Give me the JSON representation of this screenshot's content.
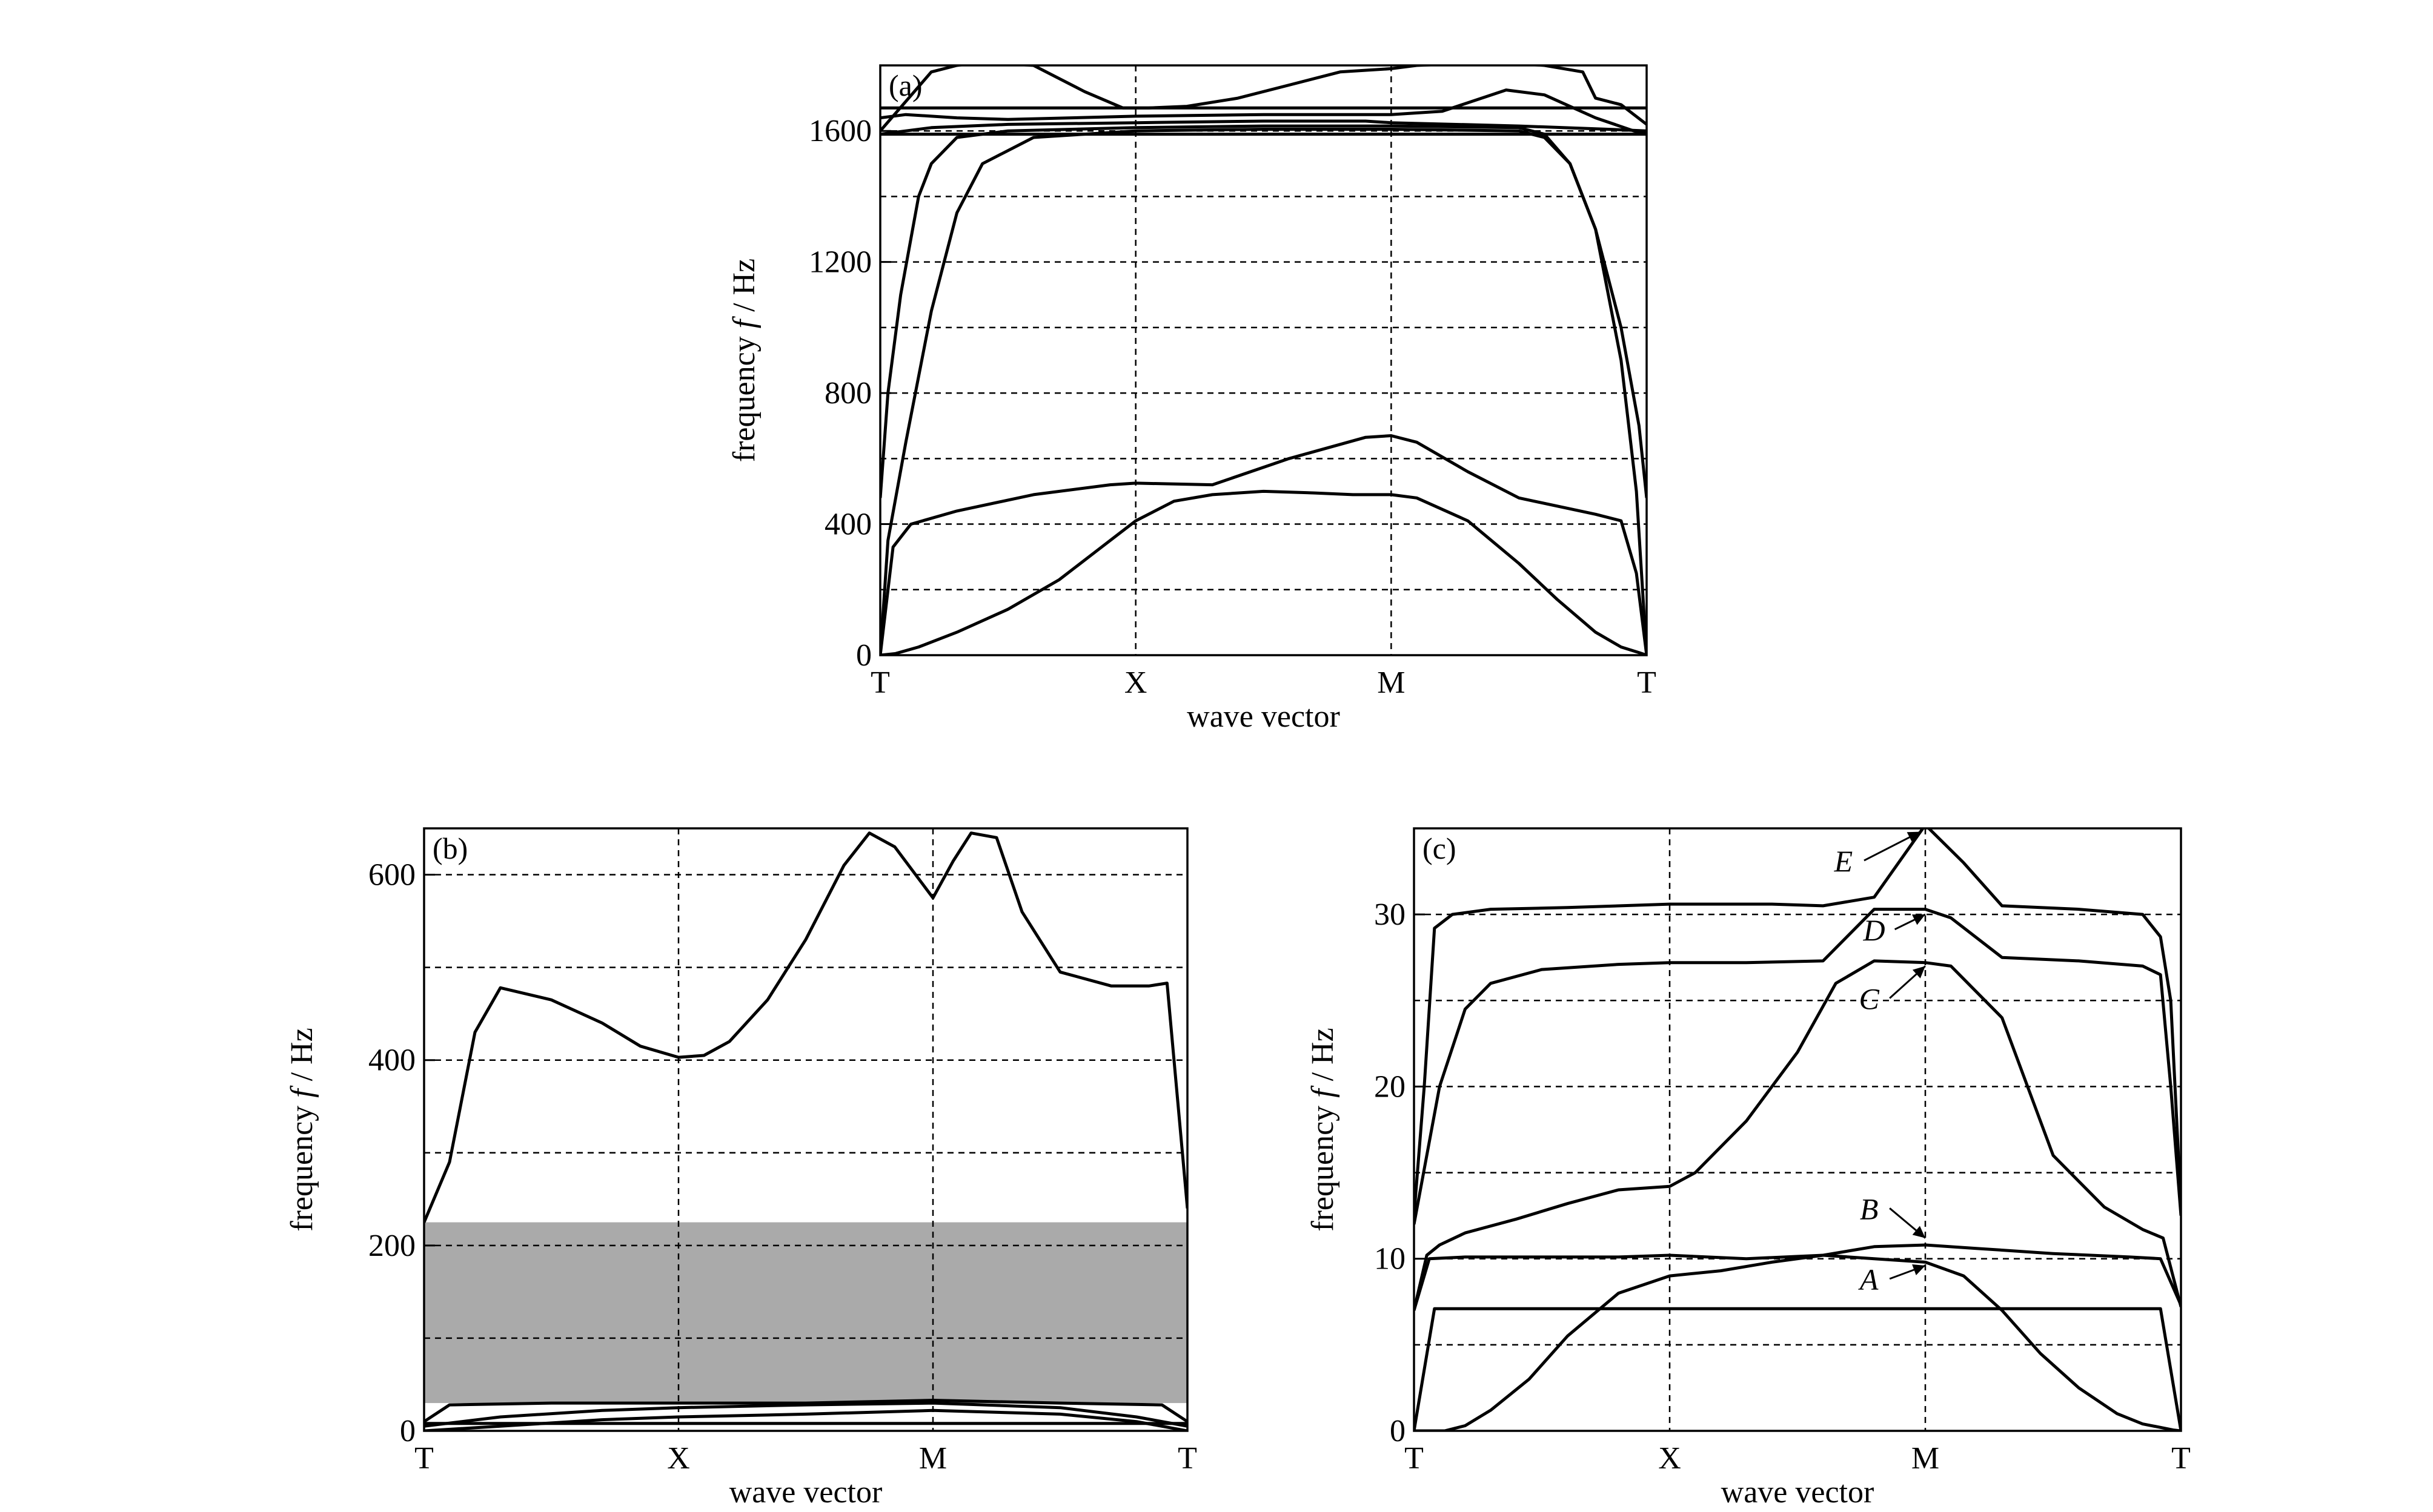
{
  "figure": {
    "background": "#ffffff",
    "line_color": "#000000",
    "band_color": "#aaaaaa"
  },
  "chart_data": [
    {
      "id": "a",
      "type": "line",
      "panel_label": "(a)",
      "xlabel": "wave vector",
      "ylabel_main": "frequency",
      "ylabel_italic": "f",
      "ylabel_unit": "/ Hz",
      "x_tick_labels": [
        "T",
        "X",
        "M",
        "T"
      ],
      "ylim": [
        0,
        1800
      ],
      "y_ticks": [
        0,
        400,
        800,
        1200,
        1600
      ],
      "y_tick_labels": [
        "0",
        "400",
        "800",
        "1200",
        "1600"
      ],
      "y_grid": [
        200,
        400,
        600,
        800,
        1000,
        1200,
        1400,
        1600
      ],
      "x_grid": [
        1,
        2
      ],
      "grid": true,
      "grid_style": "dashed",
      "series": [
        {
          "x": [
            0,
            0.06,
            0.15,
            0.3,
            0.5,
            0.7,
            0.85,
            1.0,
            1.15,
            1.3,
            1.5,
            1.7,
            1.85,
            2.0,
            2.1,
            2.3,
            2.5,
            2.65,
            2.8,
            2.9,
            2.97,
            3.0
          ],
          "y": [
            0,
            5,
            25,
            70,
            140,
            230,
            320,
            410,
            470,
            490,
            500,
            495,
            490,
            490,
            480,
            410,
            280,
            170,
            70,
            25,
            8,
            0
          ]
        },
        {
          "x": [
            0,
            0.05,
            0.12,
            0.3,
            0.6,
            0.9,
            1.0,
            1.3,
            1.6,
            1.9,
            2.0,
            2.1,
            2.3,
            2.5,
            2.8,
            2.9,
            2.96,
            3.0
          ],
          "y": [
            0,
            330,
            400,
            440,
            490,
            520,
            525,
            520,
            600,
            665,
            670,
            650,
            560,
            480,
            430,
            410,
            250,
            0
          ]
        },
        {
          "x": [
            0,
            0.03,
            0.1,
            0.2,
            0.3,
            0.4,
            0.6,
            1.0,
            1.5,
            2.0,
            2.5,
            2.6,
            2.7,
            2.8,
            2.9,
            2.96,
            3.0
          ],
          "y": [
            0,
            350,
            650,
            1050,
            1350,
            1500,
            1580,
            1600,
            1605,
            1605,
            1600,
            1580,
            1500,
            1300,
            900,
            500,
            0
          ]
        },
        {
          "x": [
            0,
            0.03,
            0.08,
            0.15,
            0.2,
            0.3,
            0.5,
            1.0,
            1.5,
            2.0,
            2.5,
            2.6,
            2.7,
            2.8,
            2.9,
            2.97,
            3.0
          ],
          "y": [
            480,
            800,
            1100,
            1400,
            1500,
            1580,
            1600,
            1610,
            1615,
            1615,
            1610,
            1590,
            1500,
            1300,
            1000,
            700,
            480
          ]
        },
        {
          "x": [
            0,
            3.0
          ],
          "y": [
            1590,
            1590
          ]
        },
        {
          "x": [
            0,
            0.2,
            0.5,
            1.0,
            1.5,
            1.9,
            2.0,
            2.5,
            2.85,
            3.0
          ],
          "y": [
            1590,
            1610,
            1620,
            1625,
            1630,
            1630,
            1625,
            1615,
            1605,
            1600
          ]
        },
        {
          "x": [
            0,
            3.0
          ],
          "y": [
            1670,
            1670
          ]
        },
        {
          "x": [
            0,
            0.1,
            0.3,
            0.5,
            1.0,
            1.5,
            2.0,
            2.2,
            2.45,
            2.6,
            2.8,
            2.95,
            3.0
          ],
          "y": [
            1640,
            1650,
            1640,
            1635,
            1645,
            1650,
            1650,
            1660,
            1725,
            1710,
            1640,
            1600,
            1590
          ]
        },
        {
          "x": [
            0,
            0.1,
            0.2,
            0.3,
            0.4,
            0.6,
            0.8,
            0.95,
            1.05,
            1.2,
            1.4,
            1.6,
            1.8,
            2.0,
            2.1,
            2.4,
            2.6,
            2.75,
            2.8,
            2.9,
            2.95,
            3.0
          ],
          "y": [
            1600,
            1690,
            1780,
            1800,
            1810,
            1800,
            1720,
            1670,
            1670,
            1675,
            1700,
            1740,
            1780,
            1790,
            1800,
            1810,
            1800,
            1780,
            1700,
            1680,
            1650,
            1620
          ]
        }
      ]
    },
    {
      "id": "b",
      "type": "line",
      "panel_label": "(b)",
      "xlabel": "wave vector",
      "ylabel_main": "frequency",
      "ylabel_italic": "f",
      "ylabel_unit": "/ Hz",
      "x_tick_labels": [
        "T",
        "X",
        "M",
        "T"
      ],
      "ylim": [
        0,
        650
      ],
      "y_ticks": [
        0,
        200,
        400,
        600
      ],
      "y_tick_labels": [
        "0",
        "200",
        "400",
        "600"
      ],
      "y_grid": [
        100,
        200,
        300,
        400,
        500,
        600
      ],
      "x_grid": [
        1,
        2
      ],
      "grid": true,
      "grid_style": "dashed",
      "band_gap": [
        30,
        225
      ],
      "series": [
        {
          "x": [
            0,
            0.1,
            0.2,
            0.3,
            0.5,
            0.7,
            0.85,
            1.0,
            1.1,
            1.2,
            1.35,
            1.5,
            1.65,
            1.75,
            1.85,
            2.0,
            2.08,
            2.15,
            2.25,
            2.35,
            2.5,
            2.7,
            2.85,
            2.92,
            3.0
          ],
          "y": [
            225,
            290,
            430,
            478,
            465,
            440,
            415,
            403,
            405,
            420,
            465,
            530,
            610,
            645,
            630,
            575,
            615,
            645,
            640,
            560,
            495,
            480,
            480,
            483,
            240
          ]
        },
        {
          "x": [
            0,
            0.1,
            0.5,
            1.0,
            1.5,
            2.0,
            2.5,
            2.9,
            3.0
          ],
          "y": [
            10,
            28,
            30,
            30,
            30,
            33,
            30,
            28,
            10
          ]
        },
        {
          "x": [
            0,
            0.3,
            0.7,
            1.0,
            1.5,
            2.0,
            2.5,
            2.8,
            3.0
          ],
          "y": [
            5,
            15,
            22,
            25,
            28,
            30,
            25,
            15,
            5
          ]
        },
        {
          "x": [
            0,
            0.3,
            0.7,
            1.0,
            1.5,
            2.0,
            2.5,
            2.8,
            3.0
          ],
          "y": [
            0,
            5,
            12,
            15,
            18,
            22,
            18,
            10,
            0
          ]
        },
        {
          "x": [
            0,
            3.0
          ],
          "y": [
            8,
            8
          ]
        }
      ]
    },
    {
      "id": "c",
      "type": "line",
      "panel_label": "(c)",
      "xlabel": "wave vector",
      "ylabel_main": "frequency",
      "ylabel_italic": "f",
      "ylabel_unit": "/ Hz",
      "x_tick_labels": [
        "T",
        "X",
        "M",
        "T"
      ],
      "ylim": [
        0,
        35
      ],
      "y_ticks": [
        0,
        10,
        20,
        30
      ],
      "y_tick_labels": [
        "0",
        "10",
        "20",
        "30"
      ],
      "y_grid": [
        5,
        10,
        15,
        20,
        25,
        30
      ],
      "x_grid": [
        1,
        2
      ],
      "grid": true,
      "grid_style": "dashed",
      "series": [
        {
          "x": [
            0,
            0.05,
            0.12,
            0.2,
            0.3,
            0.45,
            0.6,
            0.8,
            1.0,
            1.2,
            1.4,
            1.6,
            1.8,
            2.0,
            2.15,
            2.3,
            2.45,
            2.6,
            2.75,
            2.85,
            2.92,
            2.97,
            3.0
          ],
          "y": [
            0,
            0,
            0,
            0.3,
            1.2,
            3,
            5.5,
            8,
            9,
            9.3,
            9.8,
            10.2,
            10,
            9.8,
            9,
            7,
            4.5,
            2.5,
            1,
            0.4,
            0.2,
            0.05,
            0
          ]
        },
        {
          "x": [
            0,
            0.08,
            2.92,
            3.0
          ],
          "y": [
            0,
            7.1,
            7.1,
            0
          ]
        },
        {
          "x": [
            0,
            0.06,
            0.2,
            0.5,
            0.8,
            1.0,
            1.3,
            1.6,
            1.8,
            2.0,
            2.2,
            2.5,
            2.8,
            2.92,
            3.0
          ],
          "y": [
            7,
            10,
            10.1,
            10.1,
            10.1,
            10.2,
            10,
            10.2,
            10.7,
            10.8,
            10.6,
            10.3,
            10.1,
            10,
            7.3
          ]
        },
        {
          "x": [
            0,
            0.05,
            0.1,
            0.2,
            0.4,
            0.6,
            0.8,
            1.0,
            1.1,
            1.3,
            1.5,
            1.65,
            1.8,
            2.0,
            2.1,
            2.3,
            2.5,
            2.7,
            2.85,
            2.93,
            3.0
          ],
          "y": [
            7,
            10.2,
            10.8,
            11.5,
            12.3,
            13.2,
            14,
            14.2,
            15,
            18,
            22,
            26,
            27.3,
            27.2,
            27,
            24,
            16,
            13,
            11.7,
            11.2,
            7.2
          ]
        },
        {
          "x": [
            0,
            0.05,
            0.1,
            0.2,
            0.3,
            0.5,
            0.8,
            1.0,
            1.3,
            1.6,
            1.8,
            2.0,
            2.1,
            2.3,
            2.6,
            2.85,
            2.92,
            2.96,
            3.0
          ],
          "y": [
            12,
            16,
            20,
            24.5,
            26,
            26.8,
            27.1,
            27.2,
            27.2,
            27.3,
            30.3,
            30.3,
            29.8,
            27.5,
            27.3,
            27,
            26.5,
            20,
            12.5
          ]
        },
        {
          "x": [
            0,
            0.04,
            0.08,
            0.15,
            0.3,
            0.6,
            1.0,
            1.4,
            1.6,
            1.8,
            2.0,
            2.15,
            2.3,
            2.6,
            2.85,
            2.92,
            2.96,
            3.0
          ],
          "y": [
            12.5,
            20,
            29.2,
            30,
            30.3,
            30.4,
            30.6,
            30.6,
            30.5,
            31,
            35.2,
            33,
            30.5,
            30.3,
            30,
            28.7,
            25,
            13
          ]
        }
      ],
      "annotations": [
        {
          "text": "A",
          "x": 1.78,
          "y": 8.2,
          "target_x": 2.0,
          "target_y": 9.6
        },
        {
          "text": "B",
          "x": 1.78,
          "y": 12.3,
          "target_x": 2.0,
          "target_y": 11.2
        },
        {
          "text": "C",
          "x": 1.78,
          "y": 24.5,
          "target_x": 2.0,
          "target_y": 27.0
        },
        {
          "text": "D",
          "x": 1.8,
          "y": 28.5,
          "target_x": 2.0,
          "target_y": 30.0
        },
        {
          "text": "E",
          "x": 1.68,
          "y": 32.5,
          "target_x": 1.98,
          "target_y": 34.8
        }
      ]
    }
  ]
}
